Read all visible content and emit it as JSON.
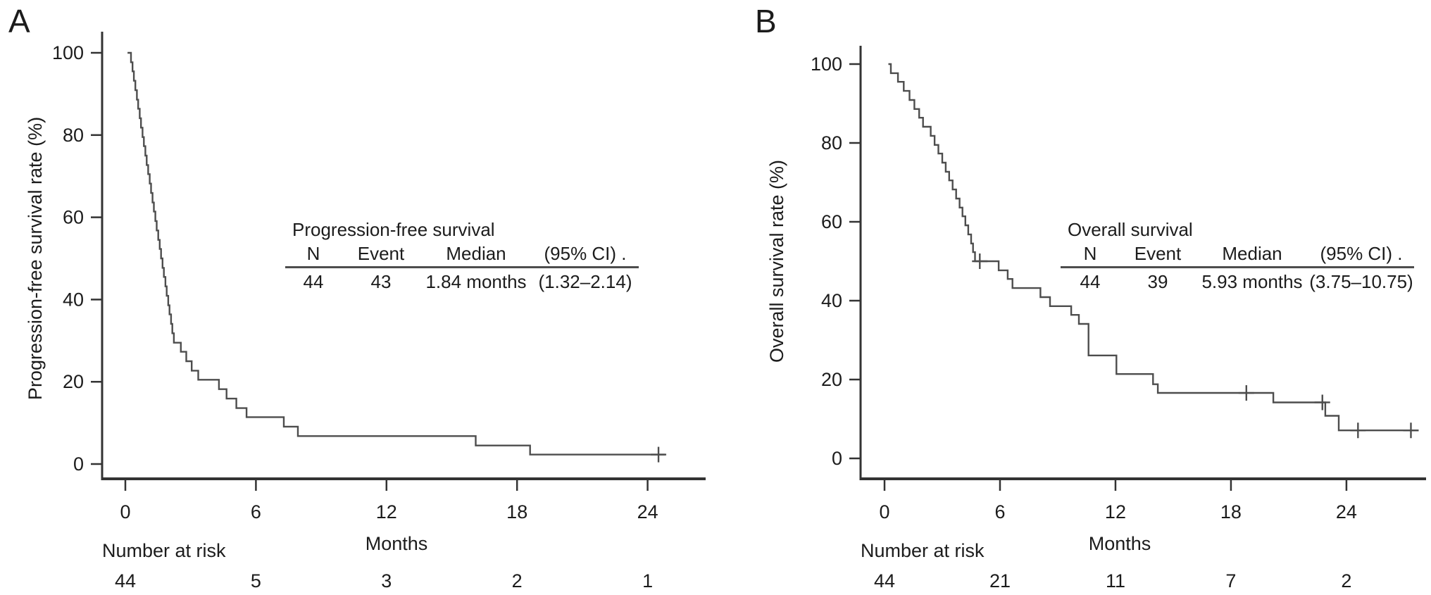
{
  "figure": {
    "background": "#ffffff",
    "text_color": "#1c1c1c",
    "curve_color": "#4d4d4d",
    "axis_color": "#333333"
  },
  "chart_data": [
    {
      "type": "line",
      "subtype": "kaplan-meier-step",
      "panel_label": "A",
      "xlabel": "Months",
      "ylabel": "Progression-free survival rate (%)",
      "xlim": [
        -1,
        26.7
      ],
      "ylim": [
        0,
        100
      ],
      "x_ticks": [
        0,
        6,
        12,
        18,
        24
      ],
      "y_ticks": [
        0,
        20,
        40,
        60,
        80,
        100
      ],
      "grid": false,
      "legend_position": "none",
      "series": [
        {
          "name": "Progression-free survival",
          "steps": [
            [
              0.1,
              100
            ],
            [
              0.26,
              97.7
            ],
            [
              0.33,
              95.5
            ],
            [
              0.39,
              93.2
            ],
            [
              0.46,
              90.9
            ],
            [
              0.53,
              88.6
            ],
            [
              0.59,
              86.4
            ],
            [
              0.66,
              84.1
            ],
            [
              0.72,
              81.8
            ],
            [
              0.79,
              79.5
            ],
            [
              0.85,
              77.3
            ],
            [
              0.92,
              75.0
            ],
            [
              0.98,
              72.7
            ],
            [
              1.05,
              70.5
            ],
            [
              1.12,
              68.2
            ],
            [
              1.18,
              65.9
            ],
            [
              1.25,
              63.6
            ],
            [
              1.31,
              61.4
            ],
            [
              1.38,
              59.1
            ],
            [
              1.44,
              56.8
            ],
            [
              1.51,
              54.5
            ],
            [
              1.58,
              52.3
            ],
            [
              1.64,
              50.0
            ],
            [
              1.71,
              47.7
            ],
            [
              1.77,
              45.5
            ],
            [
              1.84,
              43.2
            ],
            [
              1.9,
              40.9
            ],
            [
              1.97,
              38.6
            ],
            [
              2.03,
              36.4
            ],
            [
              2.1,
              34.1
            ],
            [
              2.16,
              31.8
            ],
            [
              2.23,
              29.5
            ],
            [
              2.55,
              27.3
            ],
            [
              2.8,
              25.0
            ],
            [
              3.05,
              22.7
            ],
            [
              3.35,
              20.5
            ],
            [
              4.3,
              18.2
            ],
            [
              4.65,
              15.9
            ],
            [
              5.1,
              13.6
            ],
            [
              5.57,
              11.4
            ],
            [
              7.28,
              9.1
            ],
            [
              7.93,
              6.8
            ],
            [
              16.1,
              4.5
            ],
            [
              18.6,
              2.3
            ]
          ],
          "curve_end_time": 24.8,
          "censors": [
            [
              24.5,
              2.3
            ]
          ]
        }
      ],
      "inset_table": {
        "title": "Progression-free survival",
        "headers": [
          "N",
          "Event",
          "Median",
          "(95% CI) ."
        ],
        "rows": [
          [
            "44",
            "43",
            "1.84 months",
            "(1.32–2.14)"
          ]
        ]
      },
      "number_at_risk": {
        "label": "Number at risk",
        "times": [
          0,
          6,
          12,
          18,
          24
        ],
        "counts": [
          "44",
          "5",
          "3",
          "2",
          "1"
        ]
      }
    },
    {
      "type": "line",
      "subtype": "kaplan-meier-step",
      "panel_label": "B",
      "xlabel": "Months",
      "ylabel": "Overall survival rate (%)",
      "xlim": [
        -1.2,
        28.2
      ],
      "ylim": [
        0,
        100
      ],
      "x_ticks": [
        0,
        6,
        12,
        18,
        24
      ],
      "y_ticks": [
        0,
        20,
        40,
        60,
        80,
        100
      ],
      "grid": false,
      "legend_position": "none",
      "series": [
        {
          "name": "Overall survival",
          "steps": [
            [
              0.2,
              100
            ],
            [
              0.33,
              97.7
            ],
            [
              0.7,
              95.5
            ],
            [
              1.0,
              93.2
            ],
            [
              1.3,
              90.9
            ],
            [
              1.55,
              88.6
            ],
            [
              1.8,
              86.4
            ],
            [
              2.0,
              84.1
            ],
            [
              2.4,
              81.8
            ],
            [
              2.6,
              79.5
            ],
            [
              2.8,
              77.3
            ],
            [
              3.0,
              75.0
            ],
            [
              3.18,
              72.7
            ],
            [
              3.36,
              70.5
            ],
            [
              3.54,
              68.2
            ],
            [
              3.72,
              65.9
            ],
            [
              3.9,
              63.6
            ],
            [
              4.05,
              61.4
            ],
            [
              4.2,
              59.1
            ],
            [
              4.35,
              56.8
            ],
            [
              4.5,
              54.5
            ],
            [
              4.6,
              52.3
            ],
            [
              4.7,
              50.0
            ],
            [
              5.93,
              47.7
            ],
            [
              6.4,
              45.5
            ],
            [
              6.65,
              43.2
            ],
            [
              8.1,
              40.9
            ],
            [
              8.6,
              38.6
            ],
            [
              9.7,
              36.4
            ],
            [
              10.1,
              34.1
            ],
            [
              10.6,
              26.1
            ],
            [
              12.05,
              21.4
            ],
            [
              13.95,
              18.8
            ],
            [
              14.2,
              16.6
            ],
            [
              20.2,
              14.2
            ],
            [
              22.9,
              10.8
            ],
            [
              23.6,
              7.1
            ]
          ],
          "curve_end_time": 27.7,
          "censors": [
            [
              4.95,
              50.0
            ],
            [
              18.8,
              16.6
            ],
            [
              22.75,
              14.2
            ],
            [
              24.6,
              7.1
            ],
            [
              27.35,
              7.1
            ]
          ]
        }
      ],
      "inset_table": {
        "title": "Overall survival",
        "headers": [
          "N",
          "Event",
          "Median",
          "(95% CI) ."
        ],
        "rows": [
          [
            "44",
            "39",
            "5.93 months",
            "(3.75–10.75)"
          ]
        ]
      },
      "number_at_risk": {
        "label": "Number at risk",
        "times": [
          0,
          6,
          12,
          18,
          24
        ],
        "counts": [
          "44",
          "21",
          "11",
          "7",
          "2"
        ]
      }
    }
  ]
}
